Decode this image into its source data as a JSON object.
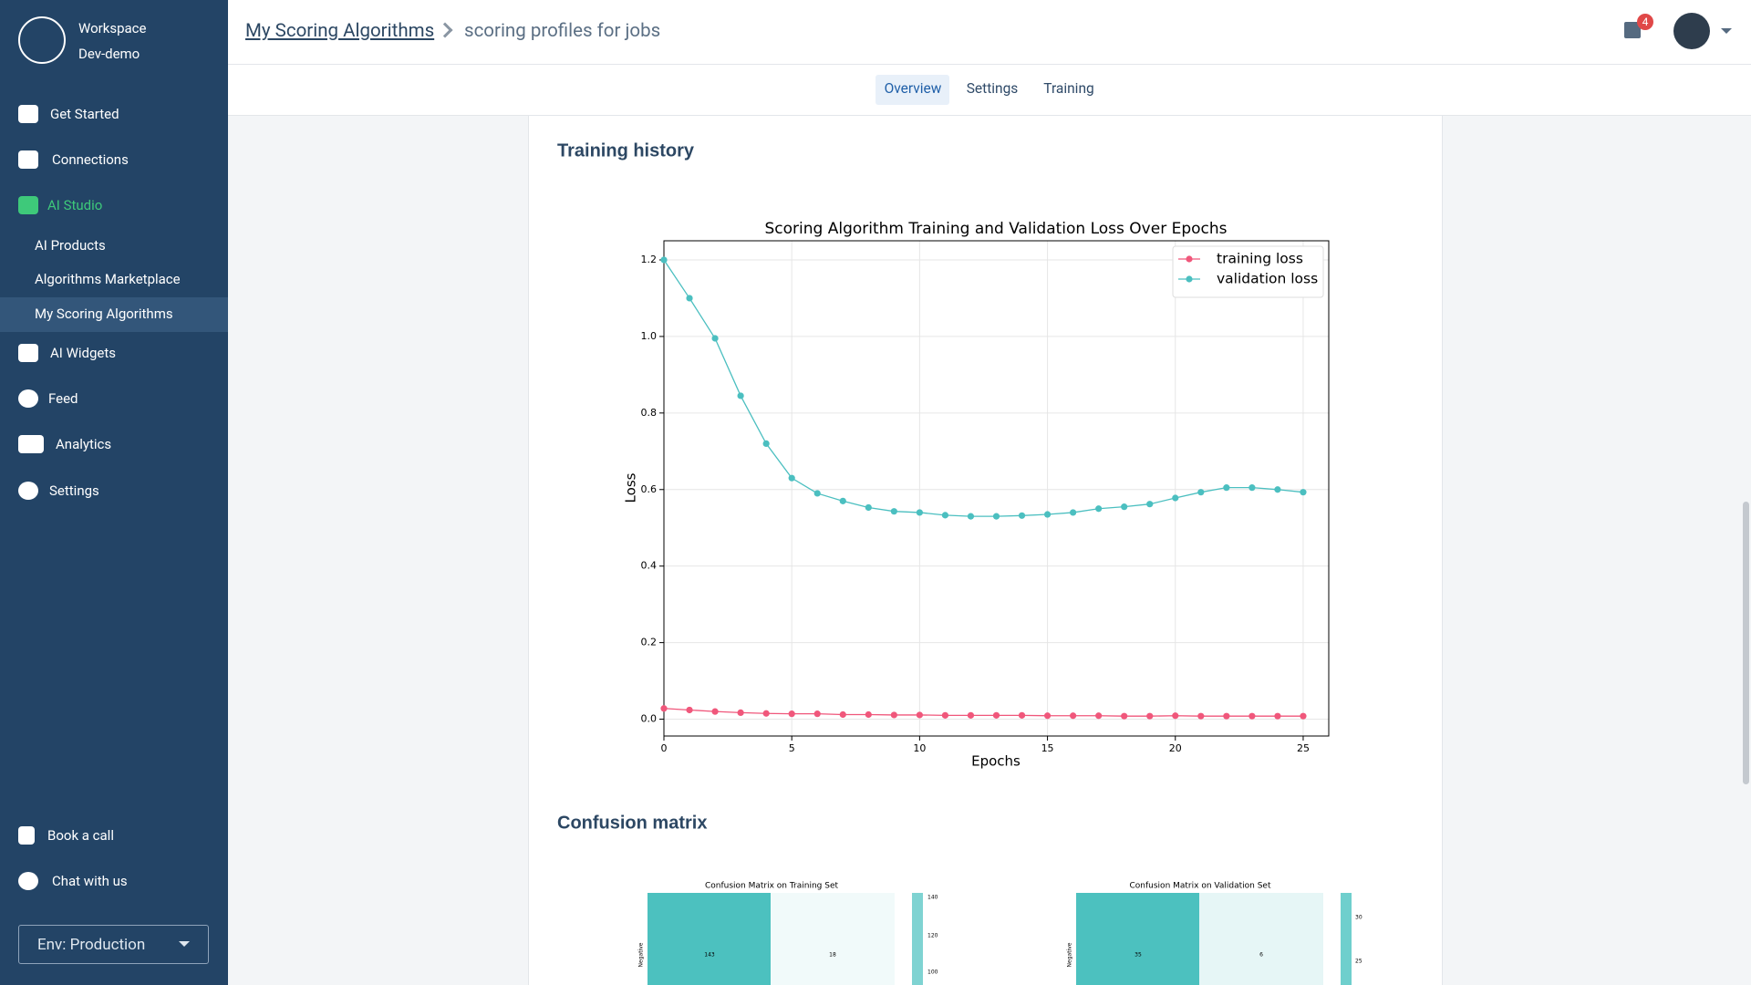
{
  "sidebar": {
    "workspace": "Workspace",
    "workspace_name": "Dev-demo",
    "nav": [
      "Get Started",
      "Connections",
      "AI Studio",
      "AI Products",
      "Algorithms Marketplace",
      "My Scoring Algorithms",
      "AI Widgets",
      "Feed",
      "Analytics",
      "Settings"
    ],
    "footer": [
      "Book a call",
      "Chat with us"
    ],
    "env": "Env: Production"
  },
  "header": {
    "breadcrumb": "My Scoring Algorithms",
    "page": "scoring profiles for jobs",
    "badge": "4",
    "tabs": [
      "Overview",
      "Settings",
      "Training"
    ]
  },
  "sections": [
    "Training history",
    "Confusion matrix"
  ],
  "chart_data": {
    "type": "line",
    "title": "Scoring Algorithm Training and Validation Loss Over Epochs",
    "x_label": "Epochs",
    "y_label": "Loss",
    "x": [
      0,
      1,
      2,
      3,
      4,
      5,
      6,
      7,
      8,
      9,
      10,
      11,
      12,
      13,
      14,
      15,
      16,
      17,
      18,
      19,
      20,
      21,
      22,
      23,
      24,
      25
    ],
    "series": [
      {
        "name": "training loss",
        "color": "#f0577b",
        "values": [
          0.028,
          0.024,
          0.02,
          0.017,
          0.015,
          0.014,
          0.014,
          0.012,
          0.012,
          0.011,
          0.011,
          0.01,
          0.01,
          0.01,
          0.01,
          0.009,
          0.009,
          0.009,
          0.008,
          0.008,
          0.009,
          0.008,
          0.008,
          0.008,
          0.008,
          0.008
        ]
      },
      {
        "name": "validation loss",
        "color": "#4bbfc0",
        "values": [
          1.2,
          1.1,
          0.995,
          0.845,
          0.72,
          0.63,
          0.59,
          0.57,
          0.553,
          0.543,
          0.54,
          0.533,
          0.53,
          0.53,
          0.532,
          0.535,
          0.54,
          0.55,
          0.555,
          0.562,
          0.578,
          0.593,
          0.605,
          0.605,
          0.6,
          0.593
        ]
      }
    ],
    "xlim": [
      0,
      26
    ],
    "ylim": [
      -0.044,
      1.25
    ],
    "xticks": [
      0,
      5,
      10,
      15,
      20,
      25
    ],
    "yticks": [
      {
        "value": 0,
        "label": "0.0"
      },
      0.2,
      0.4,
      0.6,
      0.8,
      {
        "value": 1,
        "label": "1.0"
      },
      1.2
    ],
    "grid": true,
    "legend": "upper right"
  },
  "confusion_matrices": [
    {
      "title": "Confusion Matrix on Training Set",
      "row_label": "Negative",
      "cells": [
        "143",
        "18"
      ],
      "colorbar": [
        "140",
        "120",
        "100"
      ]
    },
    {
      "title": "Confusion Matrix on Validation Set",
      "row_label": "Negative",
      "cells": [
        "35",
        "6"
      ],
      "colorbar": [
        "30",
        "25"
      ]
    }
  ]
}
